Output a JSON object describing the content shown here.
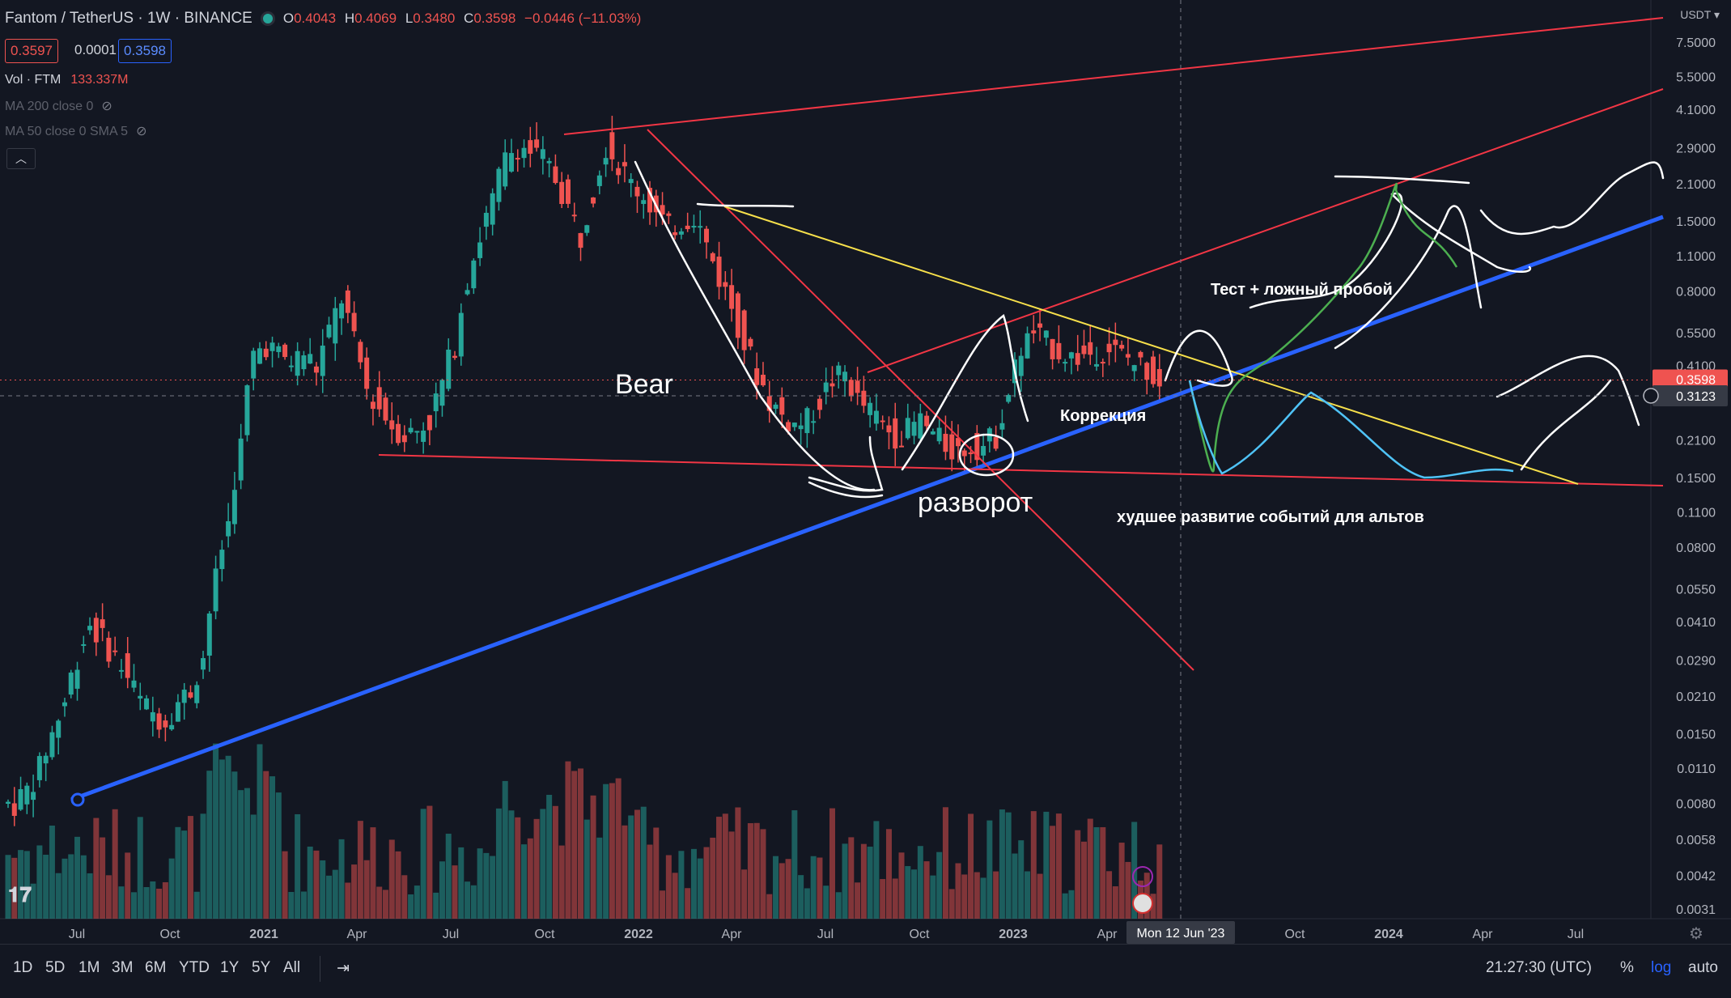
{
  "header": {
    "title": "Fantom / TetherUS · 1W · BINANCE",
    "ohlc": [
      {
        "k": "O",
        "v": "0.4043"
      },
      {
        "k": "H",
        "v": "0.4069"
      },
      {
        "k": "L",
        "v": "0.3480"
      },
      {
        "k": "C",
        "v": "0.3598"
      }
    ],
    "change": "−0.0446 (−11.03%)"
  },
  "price_boxes": {
    "sell": "0.3597",
    "spread": "0.0001",
    "buy": "0.3598"
  },
  "indicators": {
    "vol_label": "Vol · FTM",
    "vol_value": "133.337M",
    "ma200": "MA 200 close 0",
    "ma50": "MA 50 close 0 SMA 5"
  },
  "currency": "USDT",
  "price_axis": {
    "ticks": [
      "7.5000",
      "5.5000",
      "4.1000",
      "2.9000",
      "2.1000",
      "1.5000",
      "1.1000",
      "0.8000",
      "0.5500",
      "0.4100",
      "0.2100",
      "0.1500",
      "0.1100",
      "0.0800",
      "0.0550",
      "0.0410",
      "0.0290",
      "0.0210",
      "0.0150",
      "0.0110",
      "0.0080",
      "0.0058",
      "0.0042",
      "0.0031"
    ],
    "last_price": "0.3598",
    "crosshair_price": "0.3123"
  },
  "time_axis": {
    "labels": [
      {
        "t": "Jul"
      },
      {
        "t": "Oct"
      },
      {
        "t": "2021",
        "bold": true
      },
      {
        "t": "Apr"
      },
      {
        "t": "Jul"
      },
      {
        "t": "Oct"
      },
      {
        "t": "2022",
        "bold": true
      },
      {
        "t": "Apr"
      },
      {
        "t": "Jul"
      },
      {
        "t": "Oct"
      },
      {
        "t": "2023",
        "bold": true
      },
      {
        "t": "Apr"
      },
      {
        "t": "Oct"
      },
      {
        "t": "2024",
        "bold": true
      },
      {
        "t": "Apr"
      },
      {
        "t": "Jul"
      }
    ],
    "crosshair_date": "Mon 12 Jun '23"
  },
  "annotations": {
    "bear": "Bear",
    "reversal": "разворот",
    "correction": "Коррекция",
    "test": "Тест + ложный пробой",
    "worst": "худшее развитие событий для альтов"
  },
  "toolbar": {
    "ranges": [
      "1D",
      "5D",
      "1M",
      "3M",
      "6M",
      "YTD",
      "1Y",
      "5Y",
      "All"
    ],
    "clock": "21:27:30 (UTC)",
    "pct": "%",
    "log": "log",
    "auto": "auto"
  },
  "colors": {
    "up": "#26a69a",
    "down": "#ef5350",
    "trend": "#2962ff",
    "wedge": "#f23645",
    "yellow": "#f7e04b"
  },
  "chart_data": {
    "type": "candlestick",
    "title": "Fantom / TetherUS · 1W · BINANCE",
    "scale": "log",
    "ylim": [
      0.0031,
      7.5
    ],
    "x_range": [
      "2020-06",
      "2024-08"
    ],
    "price_path": [
      0.008,
      0.009,
      0.011,
      0.015,
      0.02,
      0.03,
      0.04,
      0.035,
      0.03,
      0.025,
      0.02,
      0.018,
      0.017,
      0.02,
      0.022,
      0.03,
      0.06,
      0.1,
      0.2,
      0.45,
      0.5,
      0.45,
      0.42,
      0.46,
      0.4,
      0.55,
      0.75,
      0.5,
      0.33,
      0.28,
      0.24,
      0.22,
      0.23,
      0.25,
      0.35,
      0.5,
      0.9,
      1.3,
      1.8,
      2.6,
      3.0,
      2.8,
      2.6,
      2.2,
      1.7,
      1.3,
      2.0,
      3.0,
      2.5,
      2.1,
      1.9,
      1.6,
      1.4,
      1.5,
      1.6,
      1.2,
      0.9,
      0.7,
      0.5,
      0.38,
      0.3,
      0.26,
      0.24,
      0.25,
      0.3,
      0.36,
      0.38,
      0.3,
      0.27,
      0.24,
      0.22,
      0.23,
      0.25,
      0.22,
      0.2,
      0.19,
      0.2,
      0.2,
      0.22,
      0.32,
      0.48,
      0.55,
      0.5,
      0.47,
      0.44,
      0.45,
      0.47,
      0.48,
      0.45,
      0.42,
      0.4,
      0.36
    ],
    "last_close": 0.3598
  }
}
